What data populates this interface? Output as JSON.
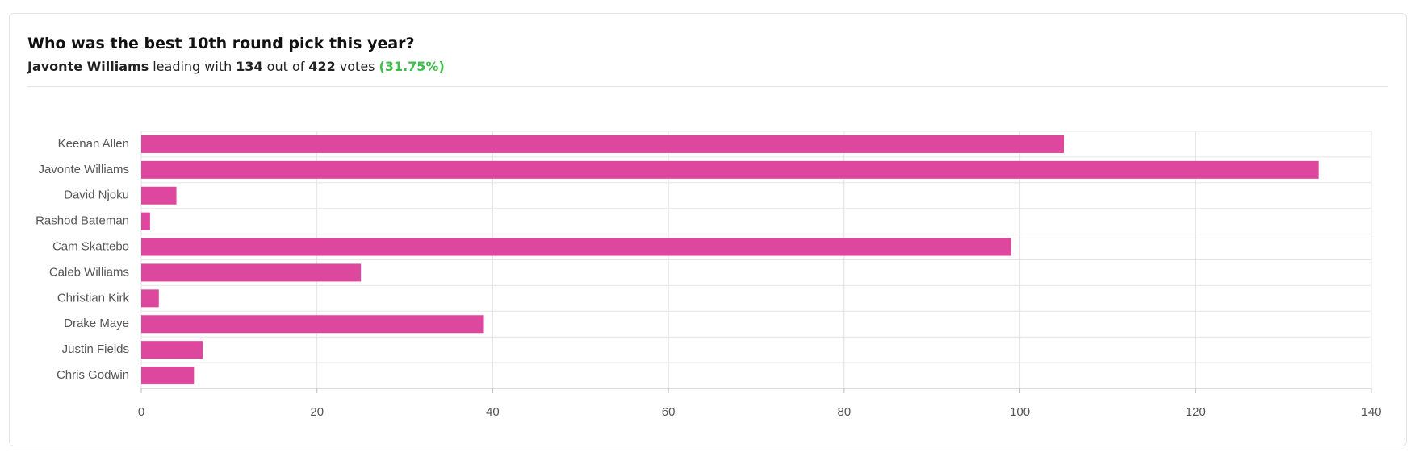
{
  "chart_data": {
    "type": "bar",
    "orientation": "horizontal",
    "title": "Who was the best 10th round pick this year?",
    "subtitle": [
      "Javonte Williams",
      "leading with",
      "134",
      "out of",
      "422",
      "votes",
      "(31.75%)"
    ],
    "categories": [
      "Keenan Allen",
      "Javonte Williams",
      "David Njoku",
      "Rashod Bateman",
      "Cam Skattebo",
      "Caleb Williams",
      "Christian Kirk",
      "Drake Maye",
      "Justin Fields",
      "Chris Godwin"
    ],
    "values": [
      105,
      134,
      4,
      1,
      99,
      25,
      2,
      39,
      7,
      6
    ],
    "color": "#dd479d",
    "xlim": [
      0,
      140
    ],
    "xticks": [
      0,
      20,
      40,
      60,
      80,
      100,
      120,
      140
    ],
    "grid": true
  }
}
